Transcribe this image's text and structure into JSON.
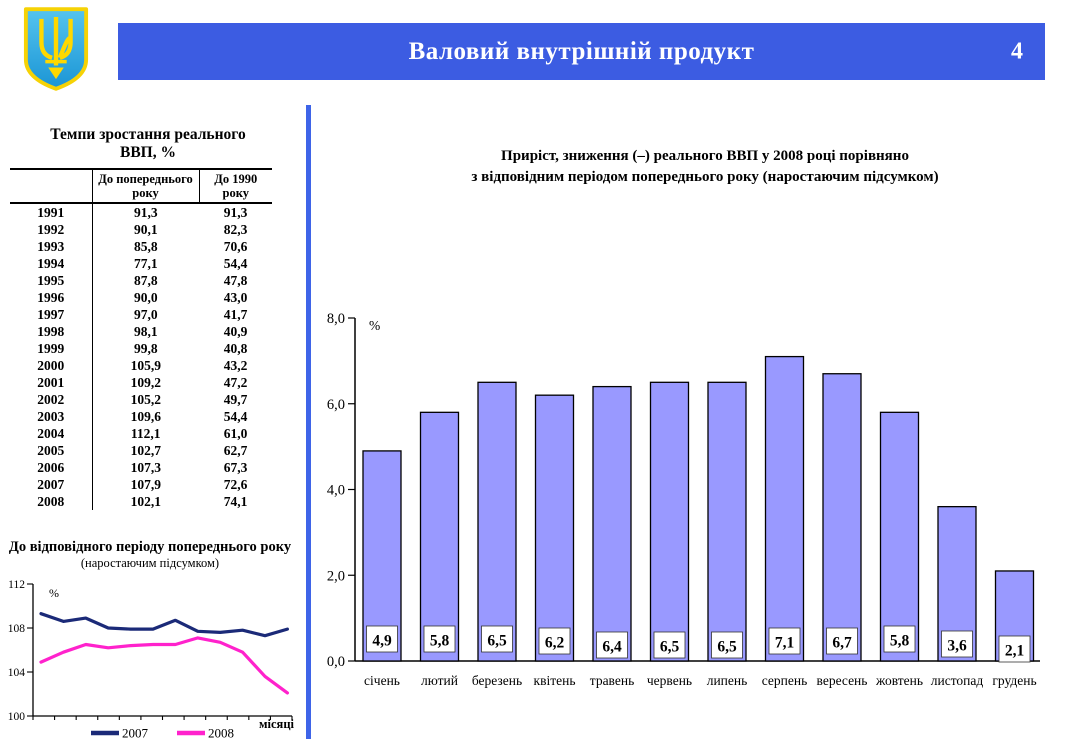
{
  "header": {
    "title": "Валовий внутрішній продукт",
    "page_number": "4"
  },
  "coat_of_arms": {
    "label": "ukraine-trident-emblem",
    "shield_color": "#2aa7e0",
    "trident_color": "#ffd800"
  },
  "colors": {
    "header_blue": "#3c5ce2",
    "divider_blue": "#3e64e8",
    "bar_fill": "#9999FF",
    "line_2007": "#1b2a78",
    "line_2008": "#ff22cc"
  },
  "table": {
    "title_line1": "Темпи зростання реального",
    "title_line2": "ВВП, %",
    "columns": [
      "",
      "До попереднього року",
      "До 1990 року"
    ],
    "rows": [
      [
        "1991",
        "91,3",
        "91,3"
      ],
      [
        "1992",
        "90,1",
        "82,3"
      ],
      [
        "1993",
        "85,8",
        "70,6"
      ],
      [
        "1994",
        "77,1",
        "54,4"
      ],
      [
        "1995",
        "87,8",
        "47,8"
      ],
      [
        "1996",
        "90,0",
        "43,0"
      ],
      [
        "1997",
        "97,0",
        "41,7"
      ],
      [
        "1998",
        "98,1",
        "40,9"
      ],
      [
        "1999",
        "99,8",
        "40,8"
      ],
      [
        "2000",
        "105,9",
        "43,2"
      ],
      [
        "2001",
        "109,2",
        "47,2"
      ],
      [
        "2002",
        "105,2",
        "49,7"
      ],
      [
        "2003",
        "109,6",
        "54,4"
      ],
      [
        "2004",
        "112,1",
        "61,0"
      ],
      [
        "2005",
        "102,7",
        "62,7"
      ],
      [
        "2006",
        "107,3",
        "67,3"
      ],
      [
        "2007",
        "107,9",
        "72,6"
      ],
      [
        "2008",
        "102,1",
        "74,1"
      ]
    ]
  },
  "chart_data": [
    {
      "type": "bar",
      "title_line1": "Приріст, зниження (–) реального ВВП у 2008 році порівняно",
      "title_line2": "з відповідним періодом попереднього року (наростаючим підсумком)",
      "categories": [
        "січень",
        "лютий",
        "березень",
        "квітень",
        "травень",
        "червень",
        "липень",
        "серпень",
        "вересень",
        "жовтень",
        "листопад",
        "грудень"
      ],
      "values": [
        4.9,
        5.8,
        6.5,
        6.2,
        6.4,
        6.5,
        6.5,
        7.1,
        6.7,
        5.8,
        3.6,
        2.1
      ],
      "value_labels": [
        "4,9",
        "5,8",
        "6,5",
        "6,2",
        "6,4",
        "6,5",
        "6,5",
        "7,1",
        "6,7",
        "5,8",
        "3,6",
        "2,1"
      ],
      "ylabel": "%",
      "xlabel": "",
      "yticks": [
        8,
        6,
        4,
        2,
        0
      ],
      "ytick_labels": [
        "8,0",
        "6,0",
        "4,0",
        "2,0",
        "0,0"
      ],
      "ylim": [
        0,
        8
      ],
      "grid": false,
      "bar_color": "#9999FF",
      "bar_border": "#000000"
    },
    {
      "type": "line",
      "title": "До відповідного періоду попереднього року",
      "subtitle": "(наростаючим підсумком)",
      "ylabel": "%",
      "xlabel": "місяці",
      "yticks": [
        112,
        108,
        104,
        100
      ],
      "ylim": [
        100,
        112
      ],
      "grid": false,
      "legend_position": "bottom",
      "x_points": 12,
      "series": [
        {
          "name": "2007",
          "color": "#1b2a78",
          "values": [
            109.3,
            108.6,
            108.9,
            108.0,
            107.9,
            107.9,
            108.7,
            107.7,
            107.6,
            107.8,
            107.3,
            107.9
          ]
        },
        {
          "name": "2008",
          "color": "#ff22cc",
          "values": [
            104.9,
            105.8,
            106.5,
            106.2,
            106.4,
            106.5,
            106.5,
            107.1,
            106.7,
            105.8,
            103.6,
            102.1
          ]
        }
      ]
    }
  ]
}
